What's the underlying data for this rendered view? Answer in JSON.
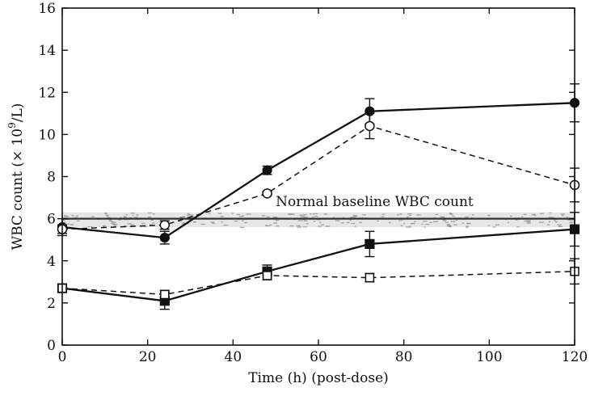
{
  "chart_data": {
    "type": "line",
    "xlabel": "Time (h) (post-dose)",
    "ylabel_prefix": "WBC count (× 10",
    "ylabel_exp": "9",
    "ylabel_suffix": "/L)",
    "xlim": [
      0,
      120
    ],
    "ylim": [
      0,
      16
    ],
    "x_ticks": [
      0,
      20,
      40,
      60,
      80,
      100,
      120
    ],
    "y_ticks": [
      0,
      2,
      4,
      6,
      8,
      10,
      12,
      14,
      16
    ],
    "grid": false,
    "annotation": "Normal baseline WBC count",
    "baseline": {
      "value": 6.0,
      "band": [
        5.6,
        6.3
      ]
    },
    "series": [
      {
        "x": [
          0,
          24,
          48,
          72,
          120
        ],
        "y": [
          5.6,
          5.1,
          8.3,
          11.1,
          11.5
        ],
        "err": [
          0.4,
          0.3,
          0.2,
          0.6,
          0.9
        ],
        "marker": "filled-circle",
        "line": "solid"
      },
      {
        "x": [
          0,
          24,
          48,
          72,
          120
        ],
        "y": [
          5.5,
          5.7,
          7.2,
          10.4,
          7.6
        ],
        "err": [
          0.2,
          0.2,
          0.1,
          0.6,
          0.8
        ],
        "marker": "open-circle",
        "line": "dashed"
      },
      {
        "x": [
          0,
          24,
          48,
          72,
          120
        ],
        "y": [
          2.7,
          2.1,
          3.5,
          4.8,
          5.5
        ],
        "err": [
          0.2,
          0.4,
          0.3,
          0.6,
          0.8
        ],
        "marker": "filled-square",
        "line": "solid"
      },
      {
        "x": [
          0,
          24,
          48,
          72,
          120
        ],
        "y": [
          2.7,
          2.4,
          3.3,
          3.2,
          3.5
        ],
        "err": [
          0.1,
          0.2,
          0.2,
          0.2,
          0.6
        ],
        "marker": "open-square",
        "line": "dashed"
      }
    ]
  }
}
